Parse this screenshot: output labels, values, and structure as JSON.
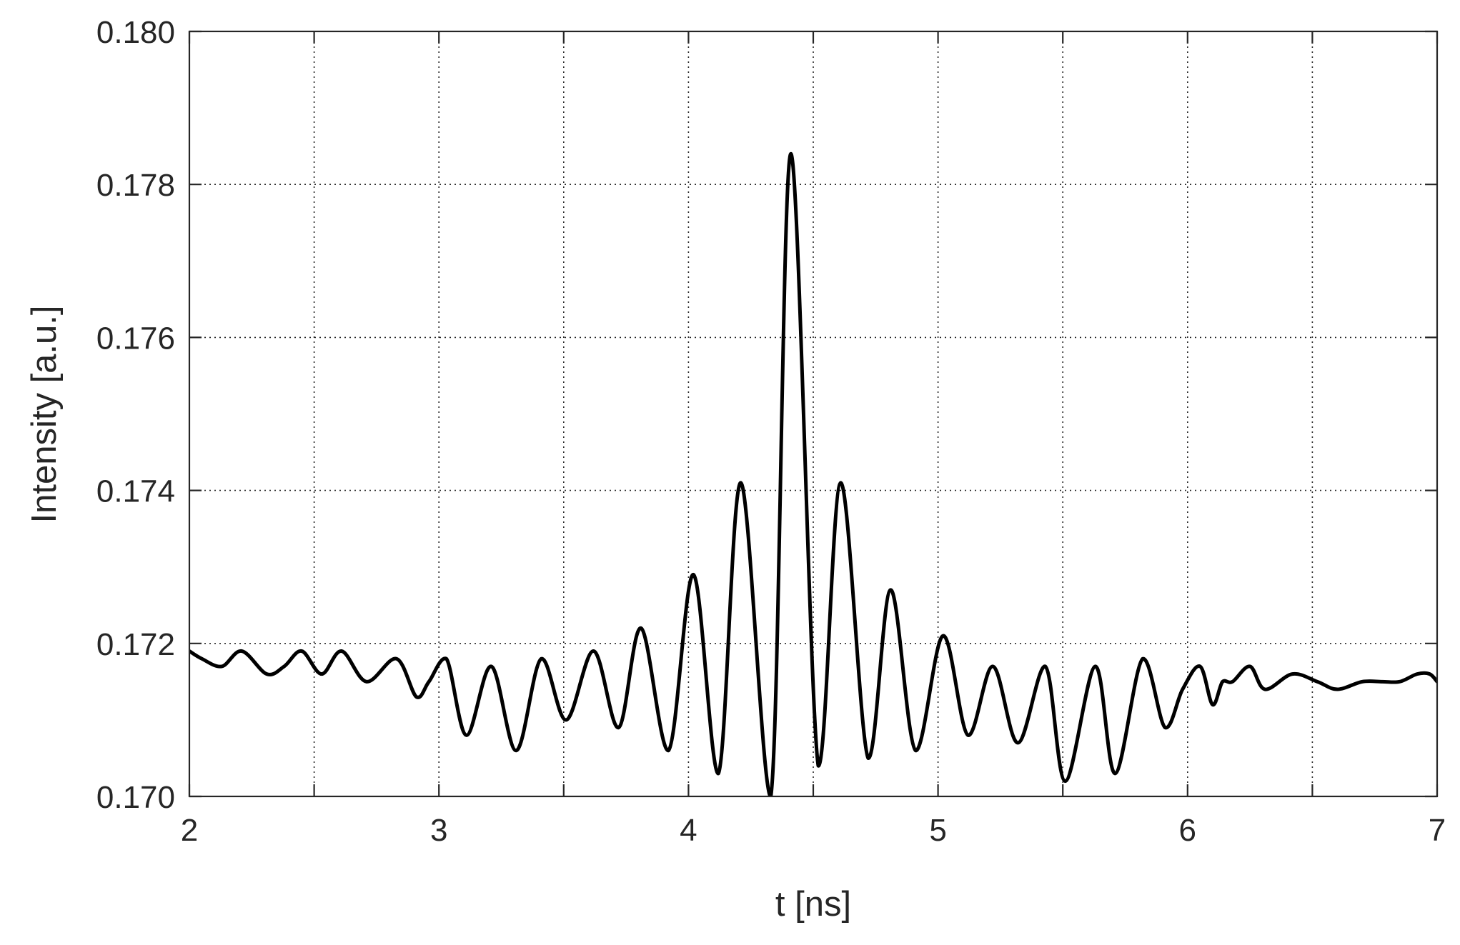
{
  "chart_data": {
    "type": "line",
    "title": "",
    "xlabel": "t [ns]",
    "ylabel": "Intensity [a.u.]",
    "xlim": [
      2,
      7
    ],
    "ylim": [
      0.17,
      0.18
    ],
    "x_ticks": [
      2,
      2.5,
      3,
      3.5,
      4,
      4.5,
      5,
      5.5,
      6,
      6.5,
      7
    ],
    "x_tick_labels": [
      "2",
      "",
      "3",
      "",
      "4",
      "",
      "5",
      "",
      "6",
      "",
      "7"
    ],
    "y_ticks": [
      0.17,
      0.172,
      0.174,
      0.176,
      0.178,
      0.18
    ],
    "y_tick_labels": [
      "0.170",
      "0.172",
      "0.174",
      "0.176",
      "0.178",
      "0.180"
    ],
    "grid": true,
    "grid_style": "dotted",
    "legend": "none",
    "colors": {
      "line": "#000000",
      "axes": "#262626",
      "grid": "#262626"
    },
    "series": [
      {
        "x": [
          2.0,
          2.05,
          2.13,
          2.21,
          2.31,
          2.38,
          2.45,
          2.53,
          2.61,
          2.71,
          2.83,
          2.91,
          2.96,
          3.03,
          3.11,
          3.21,
          3.31,
          3.41,
          3.51,
          3.62,
          3.72,
          3.81,
          3.92,
          4.02,
          4.12,
          4.21,
          4.33,
          4.41,
          4.52,
          4.61,
          4.72,
          4.81,
          4.91,
          5.02,
          5.12,
          5.22,
          5.32,
          5.43,
          5.51,
          5.63,
          5.71,
          5.82,
          5.91,
          5.98,
          6.05,
          6.1,
          6.14,
          6.18,
          6.25,
          6.31,
          6.42,
          6.52,
          6.6,
          6.7,
          6.78,
          6.85,
          6.92,
          6.97,
          7.0
        ],
        "y": [
          0.1719,
          0.1718,
          0.1717,
          0.1719,
          0.1716,
          0.1717,
          0.1719,
          0.1716,
          0.1719,
          0.1715,
          0.1718,
          0.1713,
          0.1715,
          0.1718,
          0.1708,
          0.1717,
          0.1706,
          0.1718,
          0.171,
          0.1719,
          0.1709,
          0.1722,
          0.1706,
          0.1729,
          0.1703,
          0.1741,
          0.17,
          0.1784,
          0.1704,
          0.1741,
          0.1705,
          0.1727,
          0.1706,
          0.1721,
          0.1708,
          0.1717,
          0.1707,
          0.1717,
          0.1702,
          0.1717,
          0.1703,
          0.1718,
          0.1709,
          0.1714,
          0.1717,
          0.1712,
          0.1715,
          0.1715,
          0.1717,
          0.1714,
          0.1716,
          0.1715,
          0.1714,
          0.1715,
          0.1715,
          0.1715,
          0.1716,
          0.1716,
          0.1715
        ]
      }
    ]
  }
}
